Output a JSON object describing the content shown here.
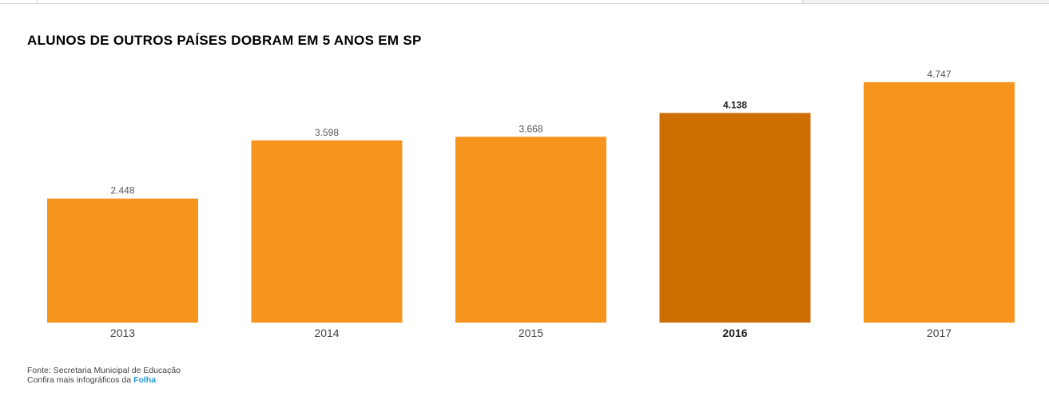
{
  "chart_data": {
    "type": "bar",
    "title": "ALUNOS DE OUTROS PAÍSES DOBRAM EM 5 ANOS EM SP",
    "categories": [
      "2013",
      "2014",
      "2015",
      "2016",
      "2017"
    ],
    "values": [
      2448,
      3598,
      3668,
      4138,
      4747
    ],
    "value_labels": [
      "2.448",
      "3.598",
      "3.668",
      "4.138",
      "4.747"
    ],
    "highlight_index": 3,
    "colors": {
      "bar": "#f7941e",
      "highlight": "#cc6e00"
    },
    "ylim": [
      0,
      5250
    ],
    "grid": false,
    "xlabel": "",
    "ylabel": ""
  },
  "footer": {
    "source": "Fonte: Secretaria Municipal de Educação",
    "more_prefix": "Confira mais infográficos da ",
    "brand": "Folha"
  }
}
